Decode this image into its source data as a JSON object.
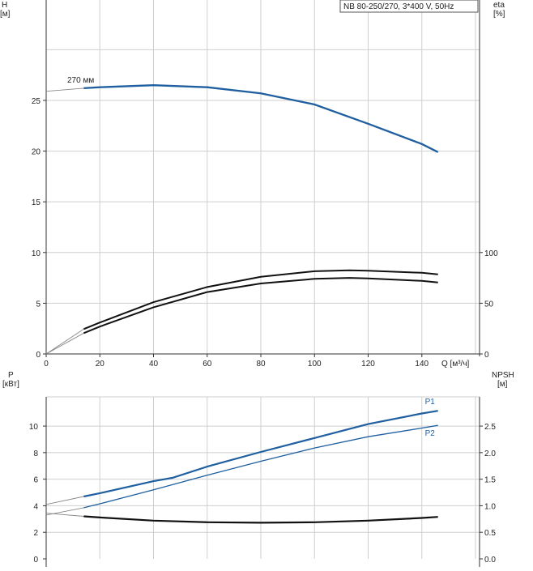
{
  "chart_data": [
    {
      "type": "line",
      "panel": "top",
      "title": "NB 80-250/270, 3*400 V, 50Hz",
      "left_axis": {
        "label_line1": "H",
        "label_line2": "[м]",
        "ticks": [
          0,
          5,
          10,
          15,
          20,
          25
        ],
        "range": [
          0,
          34.9
        ]
      },
      "right_axis": {
        "label_line1": "eta",
        "label_line2": "[%]",
        "ticks": [
          0,
          50,
          100
        ],
        "range": [
          0,
          349
        ]
      },
      "x_axis": {
        "label": "Q [м³/ч]",
        "ticks": [
          0,
          20,
          40,
          60,
          80,
          100,
          120,
          140
        ],
        "range": [
          0,
          161.5
        ]
      },
      "grid": true,
      "annotations": [
        {
          "text": "270 мм"
        }
      ],
      "series": [
        {
          "axis": "left",
          "color": "#1f5fa0",
          "role": "head-curve",
          "points": [
            [
              14,
              26.2
            ],
            [
              20,
              26.3
            ],
            [
              40,
              26.5
            ],
            [
              60,
              26.3
            ],
            [
              80,
              25.7
            ],
            [
              100,
              24.6
            ],
            [
              120,
              22.7
            ],
            [
              140,
              20.7
            ],
            [
              146,
              19.9
            ]
          ],
          "extrapolation": [
            [
              0,
              25.9
            ],
            [
              14,
              26.2
            ]
          ]
        },
        {
          "axis": "right",
          "color": "#111111",
          "role": "efficiency-upper",
          "points": [
            [
              14,
              24.5
            ],
            [
              20,
              31
            ],
            [
              40,
              51
            ],
            [
              60,
              66
            ],
            [
              80,
              76
            ],
            [
              100,
              81.5
            ],
            [
              113,
              82.5
            ],
            [
              120,
              82
            ],
            [
              140,
              80
            ],
            [
              146,
              78.5
            ]
          ],
          "extrapolation": [
            [
              0,
              0
            ],
            [
              14,
              24.5
            ]
          ]
        },
        {
          "axis": "right",
          "color": "#111111",
          "role": "efficiency-lower",
          "points": [
            [
              14,
              20.5
            ],
            [
              20,
              27
            ],
            [
              40,
              46
            ],
            [
              60,
              61
            ],
            [
              80,
              69.5
            ],
            [
              100,
              74
            ],
            [
              113,
              75
            ],
            [
              120,
              74.5
            ],
            [
              140,
              72
            ],
            [
              146,
              70.5
            ]
          ],
          "extrapolation": [
            [
              0,
              0
            ],
            [
              14,
              20.5
            ]
          ]
        }
      ]
    },
    {
      "type": "line",
      "panel": "bottom",
      "left_axis": {
        "label_line1": "P",
        "label_line2": "[кВт]",
        "ticks": [
          0,
          2,
          4,
          6,
          8,
          10
        ],
        "range": [
          0,
          12.2
        ]
      },
      "right_axis": {
        "label_line1": "NPSH",
        "label_line2": "[м]",
        "ticks": [
          "0.0",
          "0.5",
          "1.0",
          "1.5",
          "2.0",
          "2.5"
        ],
        "range": [
          0,
          3.05
        ]
      },
      "x_axis": {
        "range": [
          0,
          161.5
        ]
      },
      "grid": true,
      "series": [
        {
          "name": "P1",
          "axis": "left",
          "color": "#1f5fa0",
          "width": 2.2,
          "points": [
            [
              14,
              4.7
            ],
            [
              20,
              4.95
            ],
            [
              40,
              5.85
            ],
            [
              47,
              6.1
            ],
            [
              60,
              6.95
            ],
            [
              80,
              8.05
            ],
            [
              100,
              9.1
            ],
            [
              120,
              10.15
            ],
            [
              140,
              10.95
            ],
            [
              146,
              11.15
            ]
          ],
          "extrapolation": [
            [
              0,
              4.1
            ],
            [
              14,
              4.7
            ]
          ]
        },
        {
          "name": "P2",
          "axis": "left",
          "color": "#1f5fa0",
          "width": 1.3,
          "points": [
            [
              14,
              3.85
            ],
            [
              20,
              4.15
            ],
            [
              40,
              5.2
            ],
            [
              60,
              6.3
            ],
            [
              80,
              7.35
            ],
            [
              100,
              8.35
            ],
            [
              120,
              9.2
            ],
            [
              140,
              9.85
            ],
            [
              146,
              10.05
            ]
          ],
          "extrapolation": [
            [
              0,
              3.3
            ],
            [
              14,
              3.85
            ]
          ]
        },
        {
          "axis": "right",
          "color": "#111111",
          "role": "npsh",
          "points": [
            [
              14,
              0.8
            ],
            [
              20,
              0.78
            ],
            [
              40,
              0.72
            ],
            [
              60,
              0.69
            ],
            [
              80,
              0.68
            ],
            [
              100,
              0.69
            ],
            [
              120,
              0.72
            ],
            [
              140,
              0.77
            ],
            [
              146,
              0.79
            ]
          ],
          "extrapolation": [
            [
              0,
              0.86
            ],
            [
              14,
              0.8
            ]
          ]
        }
      ]
    }
  ]
}
